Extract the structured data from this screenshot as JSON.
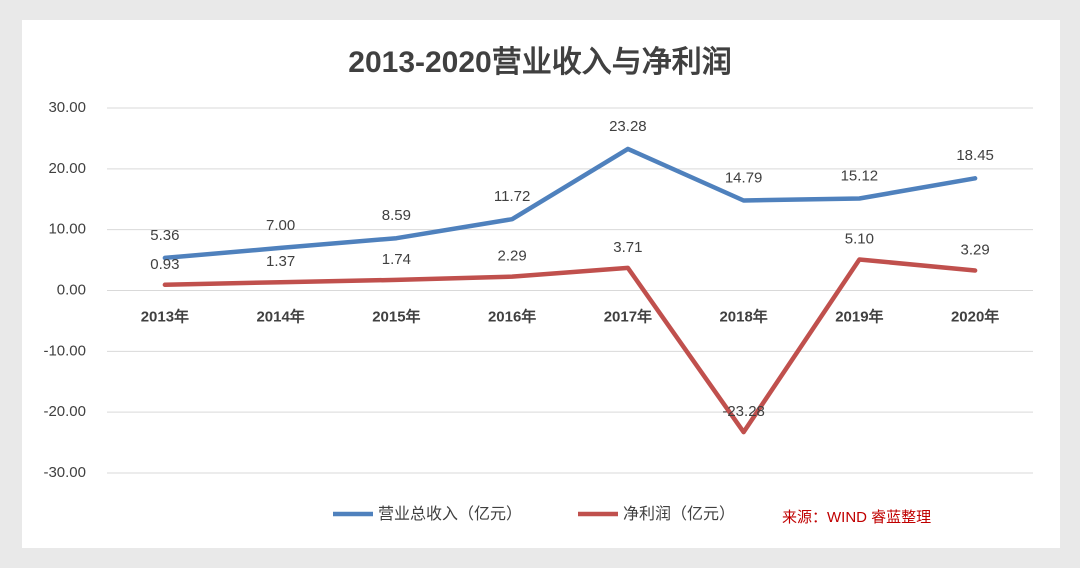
{
  "chart_data": {
    "type": "line",
    "title": "2013-2020营业收入与净利润",
    "categories": [
      "2013年",
      "2014年",
      "2015年",
      "2016年",
      "2017年",
      "2018年",
      "2019年",
      "2020年"
    ],
    "series": [
      {
        "name": "营业总收入（亿元）",
        "color": "#4f81bd",
        "values": [
          5.36,
          7.0,
          8.59,
          11.72,
          23.28,
          14.79,
          15.12,
          18.45
        ],
        "value_labels": [
          "5.36",
          "7.00",
          "8.59",
          "11.72",
          "23.28",
          "14.79",
          "15.12",
          "18.45"
        ]
      },
      {
        "name": "净利润（亿元）",
        "color": "#c0504d",
        "values": [
          0.93,
          1.37,
          1.74,
          2.29,
          3.71,
          -23.28,
          5.1,
          3.29
        ],
        "value_labels": [
          "0.93",
          "1.37",
          "1.74",
          "2.29",
          "3.71",
          "-23.28",
          "5.10",
          "3.29"
        ]
      }
    ],
    "ylim": [
      -30,
      30
    ],
    "yticks": [
      {
        "value": -30,
        "label": "-30.00"
      },
      {
        "value": -20,
        "label": "-20.00"
      },
      {
        "value": -10,
        "label": "-10.00"
      },
      {
        "value": 0,
        "label": "0.00"
      },
      {
        "value": 10,
        "label": "10.00"
      },
      {
        "value": 20,
        "label": "20.00"
      },
      {
        "value": 30,
        "label": "30.00"
      }
    ],
    "grid": true,
    "legend": "bottom",
    "annotation": "来源：WIND 睿蓝整理"
  }
}
